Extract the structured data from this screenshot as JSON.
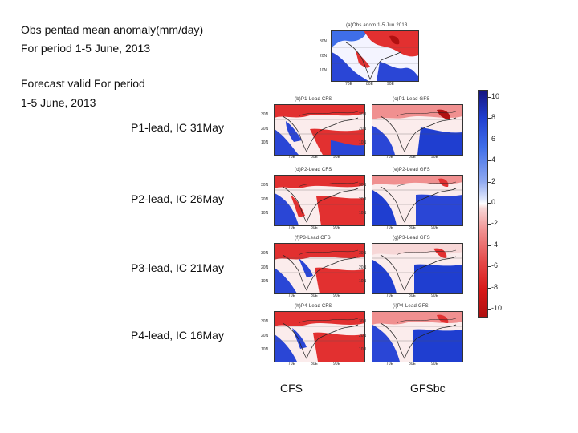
{
  "obs_title_line1": "Obs pentad mean anomaly(mm/day)",
  "obs_title_line2": "For period 1-5 June, 2013",
  "forecast_line1": "Forecast valid For period",
  "forecast_line2": "1-5 June, 2013",
  "leads": [
    "P1-lead, IC 31May",
    "P2-lead, IC 26May",
    "P3-lead, IC 21May",
    "P4-lead, IC 16May"
  ],
  "columns": {
    "cfs": "CFS",
    "gfsbc": "GFSbc"
  },
  "obs_panel_title": "(a)Obs anom 1-5 Jun 2013",
  "panel_titles": [
    "(b)P1-Lead CFS",
    "(c)P1-Lead GFS",
    "(d)P2-Lead CFS",
    "(e)P2-Lead GFS",
    "(f)P3-Lead CFS",
    "(g)P3-Lead GFS",
    "(h)P4-Lead CFS",
    "(i)P4-Lead GFS"
  ],
  "lat_labels": [
    "30N",
    "20N",
    "10N"
  ],
  "lon_labels": [
    "70E",
    "80E",
    "90E"
  ],
  "colorbar_labels": [
    "10",
    "8",
    "6",
    "4",
    "2",
    "0",
    "-2",
    "-4",
    "-6",
    "-8",
    "-10"
  ],
  "colors": {
    "pos": "#2a46d6",
    "neg": "#e23030",
    "deep_pos": "#151580",
    "deep_neg": "#b01010"
  }
}
